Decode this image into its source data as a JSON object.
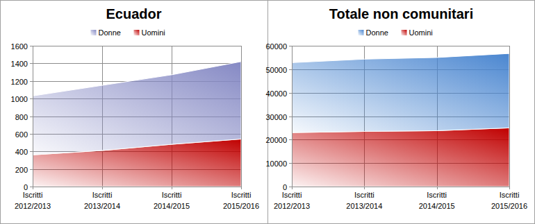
{
  "chart_data": [
    {
      "type": "area",
      "title": "Ecuador",
      "stacked": true,
      "grid": true,
      "legend": "top",
      "categories": [
        "Iscritti 2012/2013",
        "Iscritti 2013/2014",
        "Iscritti 2014/2015",
        "Iscritti 2015/2016"
      ],
      "series": [
        {
          "name": "Donne",
          "color": "#8589c4",
          "values": [
            670,
            740,
            790,
            880
          ]
        },
        {
          "name": "Uomini",
          "color": "#c00000",
          "values": [
            360,
            410,
            480,
            540
          ]
        }
      ],
      "ylim": [
        0,
        1600
      ],
      "yticks": [
        0,
        200,
        400,
        600,
        800,
        1000,
        1200,
        1400,
        1600
      ]
    },
    {
      "type": "area",
      "title": "Totale non comunitari",
      "stacked": true,
      "grid": true,
      "legend": "top",
      "categories": [
        "Iscritti 2012/2013",
        "Iscritti 2013/2014",
        "Iscritti 2014/2015",
        "Iscritti 2015/2016"
      ],
      "series": [
        {
          "name": "Donne",
          "color": "#4a86d0",
          "values": [
            29800,
            30800,
            31200,
            31700
          ]
        },
        {
          "name": "Uomini",
          "color": "#c00000",
          "values": [
            23000,
            23500,
            23800,
            25000
          ]
        }
      ],
      "ylim": [
        0,
        60000
      ],
      "yticks": [
        0,
        10000,
        20000,
        30000,
        40000,
        50000,
        60000
      ]
    }
  ]
}
